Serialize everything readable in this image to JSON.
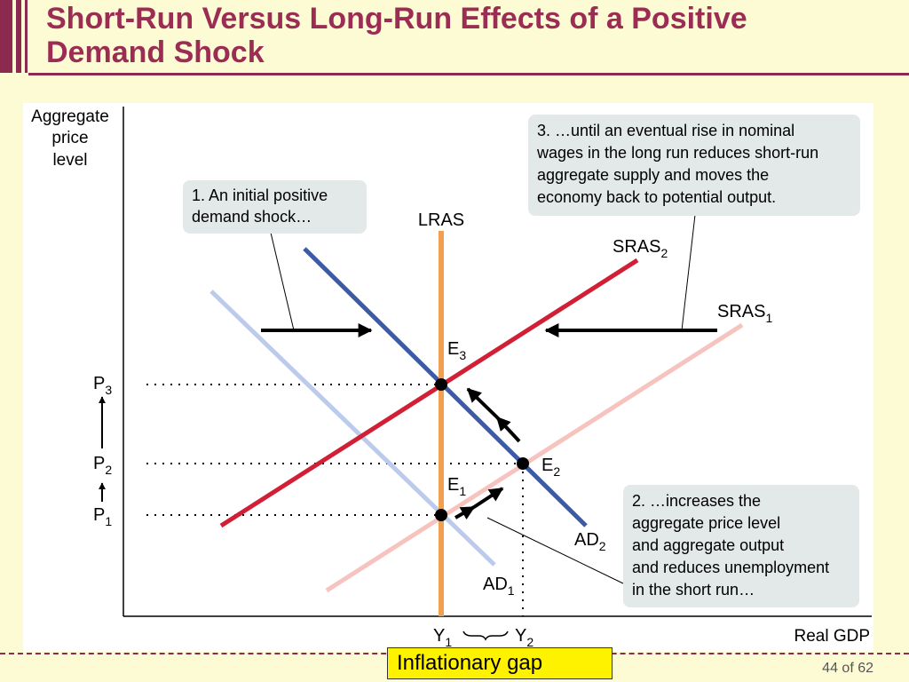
{
  "slide": {
    "title_line1": "Short-Run Versus Long-Run Effects of a Positive",
    "title_line2": "Demand Shock",
    "footer_box": "Inflationary gap",
    "page_number": "44 of 62"
  },
  "diagram": {
    "y_axis_label": [
      "Aggregate",
      "price",
      "level"
    ],
    "x_axis_label": "Real GDP",
    "curves": {
      "lras": "LRAS",
      "sras2": "SRAS",
      "sras2_sub": "2",
      "sras1": "SRAS",
      "sras1_sub": "1",
      "ad1": "AD",
      "ad1_sub": "1",
      "ad2": "AD",
      "ad2_sub": "2"
    },
    "points": {
      "e1": "E",
      "e1_sub": "1",
      "e2": "E",
      "e2_sub": "2",
      "e3": "E",
      "e3_sub": "3"
    },
    "price_labels": {
      "p1": "P",
      "p1_sub": "1",
      "p2": "P",
      "p2_sub": "2",
      "p3": "P",
      "p3_sub": "3"
    },
    "output_labels": {
      "y1": "Y",
      "y1_sub": "1",
      "y2": "Y",
      "y2_sub": "2"
    },
    "callouts": {
      "c1": [
        "1. An initial positive",
        "demand shock…"
      ],
      "c2": [
        "2. …increases the",
        "aggregate price level",
        "and aggregate output",
        "and reduces unemployment",
        "in the short run…"
      ],
      "c3": [
        "3. …until an eventual rise in nominal",
        "wages in the long run reduces short-run",
        "aggregate supply and moves the",
        "economy back to potential output."
      ]
    },
    "colors": {
      "lras": "#f0a050",
      "sras2": "#d11f35",
      "sras1": "#f6c3bf",
      "ad2": "#3c5aa6",
      "ad1": "#bccbec",
      "callout_bg": "#e3e8e8"
    }
  }
}
